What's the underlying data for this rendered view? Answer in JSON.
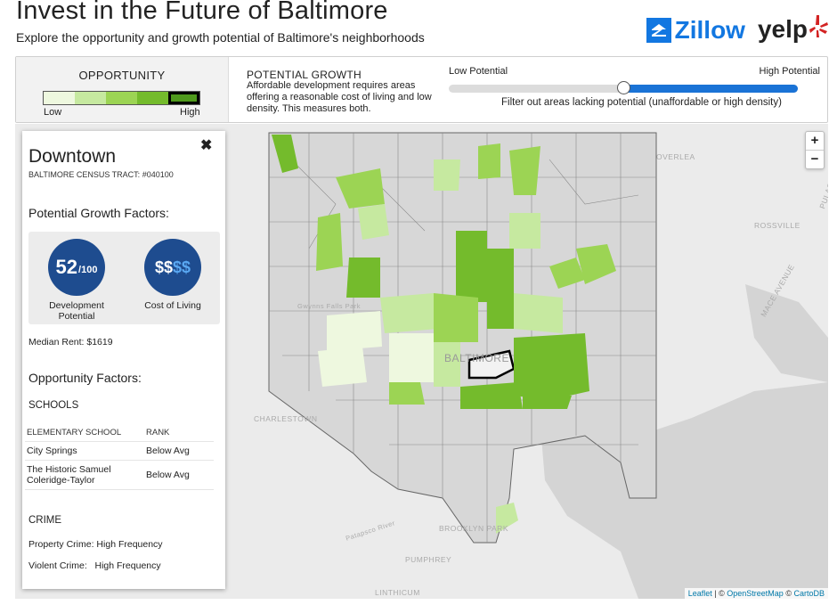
{
  "header": {
    "title": "Invest in the Future of Baltimore",
    "subtitle": "Explore the opportunity and growth potential of Baltimore's neighborhoods",
    "logos": {
      "zillow": "Zillow",
      "yelp": "yelp"
    }
  },
  "opportunity": {
    "title": "OPPORTUNITY",
    "low_label": "Low",
    "high_label": "High",
    "scale_colors": [
      "#eef8df",
      "#c6e9a0",
      "#9cd454",
      "#74bb2c",
      "#4f9a1c"
    ],
    "selected_index": 4
  },
  "potential_growth": {
    "title": "POTENTIAL GROWTH",
    "description": "Affordable development requires areas offering a reasonable cost of living and low density. This measures both.",
    "slider": {
      "low_label": "Low Potential",
      "high_label": "High Potential",
      "value_fraction": 0.5,
      "fill_color": "#1a73d6",
      "caption": "Filter out areas lacking potential (unaffordable or high density)"
    }
  },
  "map": {
    "zoom_in": "+",
    "zoom_out": "−",
    "place_labels": [
      "OVERLEA",
      "ROSSVILLE",
      "BALTIMORE",
      "CHARLESTOWN",
      "BROOKLYN PARK",
      "PUMPHREY",
      "LINTHICUM",
      "Gwynns Falls Park"
    ],
    "road_labels": [
      "PULASKI HWY",
      "MACE AVENUE",
      "Patapsco River"
    ],
    "attribution": {
      "leaflet": "Leaflet",
      "sep": "|",
      "osm": "OpenStreetMap",
      "carto": "CartoDB",
      "copy": "©"
    }
  },
  "panel": {
    "close_icon": "✖",
    "name": "Downtown",
    "tract": "BALTIMORE CENSUS TRACT: #040100",
    "pgf_title": "Potential Growth Factors:",
    "development_score": "52",
    "development_max": "/100",
    "development_label": "Development Potential",
    "cost_level_on": "$$",
    "cost_level_off": "$$",
    "cost_label": "Cost of Living",
    "median_rent": "Median Rent: $1619",
    "opportunity_title": "Opportunity Factors:",
    "schools_title": "SCHOOLS",
    "school_columns": [
      "ELEMENTARY SCHOOL",
      "RANK"
    ],
    "schools": [
      {
        "name": "City Springs",
        "rank": "Below Avg"
      },
      {
        "name": "The Historic Samuel Coleridge-Taylor",
        "rank": "Below Avg"
      }
    ],
    "crime_title": "CRIME",
    "property_crime": "Property Crime: High Frequency",
    "violent_crime": "Violent Crime:   High Frequency"
  }
}
